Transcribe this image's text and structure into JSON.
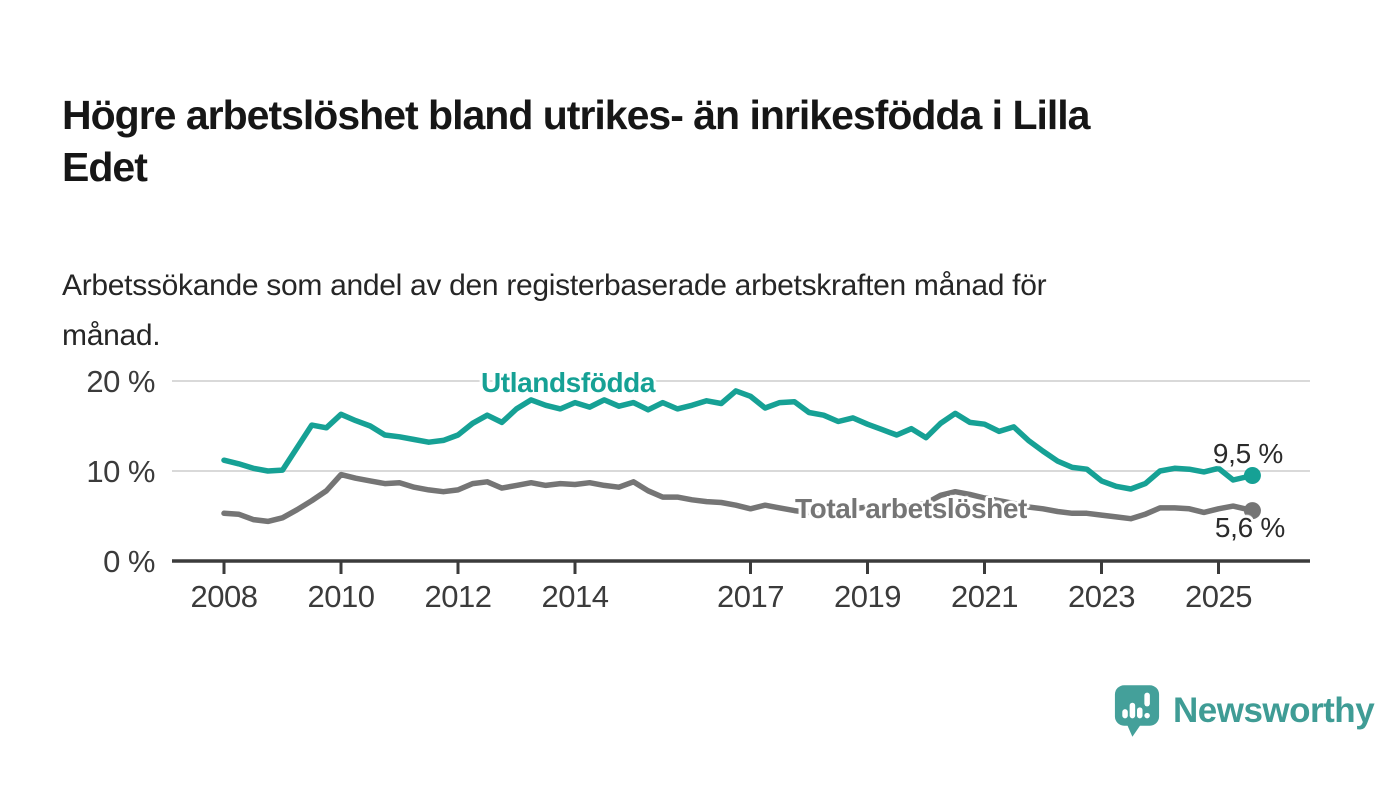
{
  "header": {
    "title_lines": [
      "Högre arbetslöshet bland utrikes- än inrikesfödda i Lilla",
      "Edet"
    ],
    "subtitle_lines": [
      "Arbetssökande som andel av den registerbaserade arbetskraften månad för",
      "månad."
    ]
  },
  "chart_data": {
    "type": "line",
    "unit": "%",
    "grid": "horizontal-only",
    "legend_position": "inline-labels",
    "ylim": [
      0,
      22
    ],
    "xlim": [
      2007.1,
      2026.6
    ],
    "yticks": [
      {
        "value": 0,
        "label": "0 %"
      },
      {
        "value": 10,
        "label": "10 %"
      },
      {
        "value": 20,
        "label": "20 %"
      }
    ],
    "xticks": [
      {
        "value": 2008,
        "label": "2008"
      },
      {
        "value": 2010,
        "label": "2010"
      },
      {
        "value": 2012,
        "label": "2012"
      },
      {
        "value": 2014,
        "label": "2014"
      },
      {
        "value": 2017,
        "label": "2017"
      },
      {
        "value": 2019,
        "label": "2019"
      },
      {
        "value": 2021,
        "label": "2021"
      },
      {
        "value": 2023,
        "label": "2023"
      },
      {
        "value": 2025,
        "label": "2025"
      }
    ],
    "x": [
      2008.0,
      2008.25,
      2008.5,
      2008.75,
      2009.0,
      2009.25,
      2009.5,
      2009.75,
      2010.0,
      2010.25,
      2010.5,
      2010.75,
      2011.0,
      2011.25,
      2011.5,
      2011.75,
      2012.0,
      2012.25,
      2012.5,
      2012.75,
      2013.0,
      2013.25,
      2013.5,
      2013.75,
      2014.0,
      2014.25,
      2014.5,
      2014.75,
      2015.0,
      2015.25,
      2015.5,
      2015.75,
      2016.0,
      2016.25,
      2016.5,
      2016.75,
      2017.0,
      2017.25,
      2017.5,
      2017.75,
      2018.0,
      2018.25,
      2018.5,
      2018.75,
      2019.0,
      2019.25,
      2019.5,
      2019.75,
      2020.0,
      2020.25,
      2020.5,
      2020.75,
      2021.0,
      2021.25,
      2021.5,
      2021.75,
      2022.0,
      2022.25,
      2022.5,
      2022.75,
      2023.0,
      2023.25,
      2023.5,
      2023.75,
      2024.0,
      2024.25,
      2024.5,
      2024.75,
      2025.0,
      2025.25,
      2025.58
    ],
    "series": [
      {
        "name": "Utlandsfödda",
        "color": "#16a195",
        "end_label": "9,5 %",
        "end_value": 9.5,
        "values": [
          11.2,
          10.8,
          10.3,
          10.0,
          10.1,
          12.6,
          15.1,
          14.8,
          16.3,
          15.6,
          15.0,
          14.0,
          13.8,
          13.5,
          13.2,
          13.4,
          14.0,
          15.3,
          16.2,
          15.4,
          16.9,
          17.9,
          17.3,
          16.9,
          17.6,
          17.1,
          17.9,
          17.2,
          17.6,
          16.8,
          17.6,
          16.9,
          17.3,
          17.8,
          17.5,
          18.9,
          18.3,
          17.0,
          17.6,
          17.7,
          16.5,
          16.2,
          15.5,
          15.9,
          15.2,
          14.6,
          14.0,
          14.7,
          13.7,
          15.3,
          16.4,
          15.4,
          15.2,
          14.4,
          14.9,
          13.4,
          12.2,
          11.1,
          10.4,
          10.2,
          8.9,
          8.3,
          8.0,
          8.6,
          10.0,
          10.3,
          10.2,
          9.9,
          10.3,
          9.0,
          9.5
        ]
      },
      {
        "name": "Total arbetslöshet",
        "color": "#757575",
        "end_label": "5,6 %",
        "end_value": 5.6,
        "values": [
          5.3,
          5.2,
          4.6,
          4.4,
          4.8,
          5.7,
          6.7,
          7.8,
          9.6,
          9.2,
          8.9,
          8.6,
          8.7,
          8.2,
          7.9,
          7.7,
          7.9,
          8.6,
          8.8,
          8.1,
          8.4,
          8.7,
          8.4,
          8.6,
          8.5,
          8.7,
          8.4,
          8.2,
          8.8,
          7.8,
          7.1,
          7.1,
          6.8,
          6.6,
          6.5,
          6.2,
          5.8,
          6.2,
          5.9,
          5.6,
          5.4,
          5.1,
          5.3,
          5.8,
          6.0,
          6.1,
          5.9,
          6.2,
          6.4,
          7.3,
          7.7,
          7.4,
          7.0,
          6.7,
          6.4,
          6.0,
          5.8,
          5.5,
          5.3,
          5.3,
          5.1,
          4.9,
          4.7,
          5.2,
          5.9,
          5.9,
          5.8,
          5.4,
          5.8,
          6.1,
          5.6
        ]
      }
    ]
  },
  "branding": {
    "logo_text": "Newsworthy",
    "logo_color": "#3f9c95",
    "logo_icon": "bar-chart-speech-bubble"
  },
  "colors": {
    "background": "#ffffff",
    "title": "#161616",
    "subtitle": "#262626",
    "axis": "#3b3b3b",
    "gridline": "#d9d9d9",
    "value_label": "#2b2b2b"
  }
}
